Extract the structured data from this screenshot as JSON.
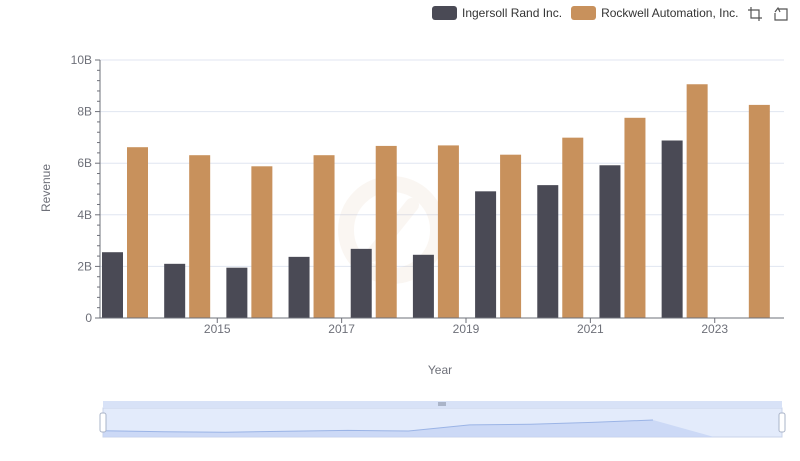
{
  "toolbox": {
    "zoom_icon": "data-zoom-icon",
    "restore_icon": "restore-icon"
  },
  "chart_data": {
    "type": "bar",
    "xlabel": "Year",
    "ylabel": "Revenue",
    "ylim": [
      0,
      10000000000
    ],
    "y_ticks": [
      {
        "value": 0,
        "label": "0"
      },
      {
        "value": 2000000000,
        "label": "2B"
      },
      {
        "value": 4000000000,
        "label": "4B"
      },
      {
        "value": 6000000000,
        "label": "6B"
      },
      {
        "value": 8000000000,
        "label": "8B"
      },
      {
        "value": 10000000000,
        "label": "10B"
      }
    ],
    "categories": [
      "2014",
      "2015",
      "2016",
      "2017",
      "2018",
      "2019",
      "2020",
      "2021",
      "2022",
      "2023",
      "2024"
    ],
    "x_tick_labels": [
      "",
      "2015",
      "",
      "2017",
      "",
      "2019",
      "",
      "2021",
      "",
      "2023",
      ""
    ],
    "grid": true,
    "legend_position": "top-right",
    "series": [
      {
        "name": "Ingersoll Rand Inc.",
        "color": "#4a4a55",
        "values": [
          2550000000,
          2100000000,
          1950000000,
          2370000000,
          2680000000,
          2450000000,
          4910000000,
          5150000000,
          5920000000,
          6880000000,
          null
        ]
      },
      {
        "name": "Rockwell Automation, Inc.",
        "color": "#c8915c",
        "values": [
          6620000000,
          6310000000,
          5880000000,
          6310000000,
          6670000000,
          6690000000,
          6330000000,
          6990000000,
          7760000000,
          9060000000,
          8260000000
        ]
      }
    ]
  }
}
